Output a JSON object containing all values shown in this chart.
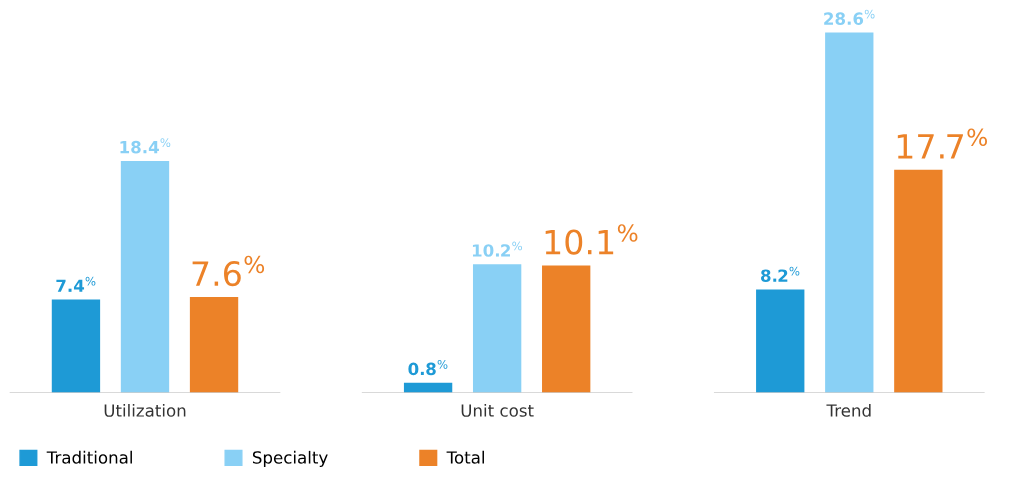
{
  "chart_data": {
    "type": "bar",
    "categories": [
      "Utilization",
      "Unit cost",
      "Trend"
    ],
    "series": [
      {
        "name": "Traditional",
        "color": "#1e9ad6",
        "values": [
          7.4,
          0.8,
          8.2
        ],
        "value_labels": [
          "7.4$^{%}$",
          "0.8$^{%}$",
          "8.2$^{%}$"
        ]
      },
      {
        "name": "Specialty",
        "color": "#89d0f5",
        "values": [
          18.4,
          10.2,
          28.6
        ],
        "value_labels": [
          "18.4$^{%}$",
          "10.2$^{%}$",
          "28.6$^{%}$"
        ]
      },
      {
        "name": "Total",
        "color": "#ec8228",
        "values": [
          7.6,
          10.1,
          17.7
        ],
        "value_labels": [
          "7.6$^{%}$",
          "10.1$^{%}$",
          "17.7$^{%}$"
        ]
      }
    ],
    "tick_labels": "x",
    "grid": false,
    "legend": "bottom left"
  }
}
